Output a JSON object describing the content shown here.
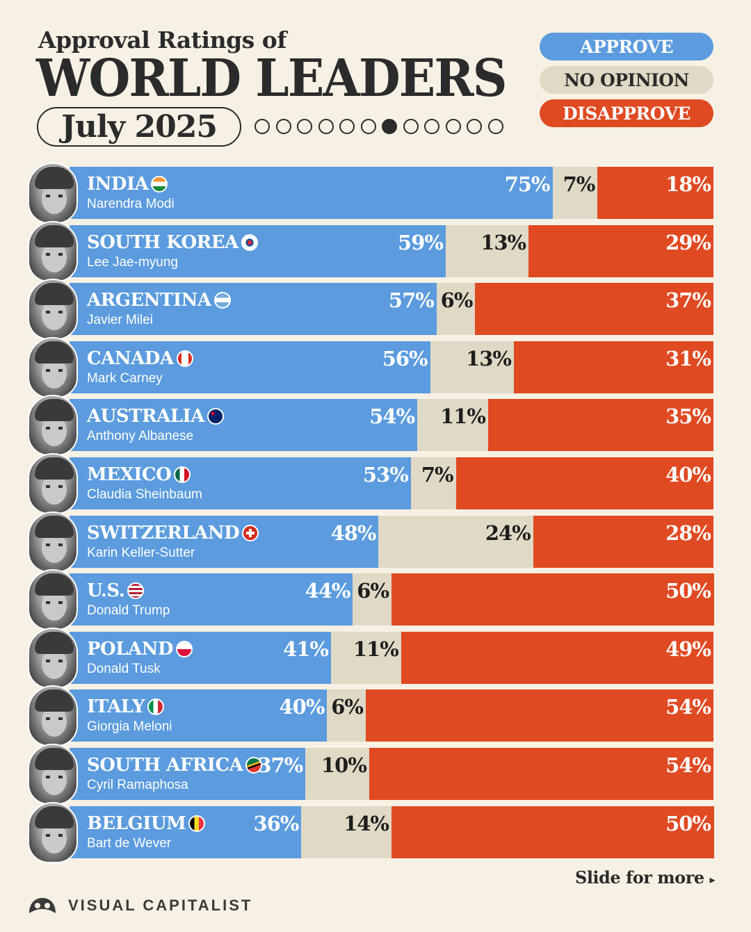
{
  "header": {
    "subtitle": "Approval Ratings of",
    "title": "WORLD LEADERS",
    "date": "July 2025",
    "pager": {
      "total": 12,
      "active": 6
    }
  },
  "legend": {
    "approve": "APPROVE",
    "no_opinion": "NO OPINION",
    "disapprove": "DISAPPROVE"
  },
  "colors": {
    "approve": "#5b9bde",
    "no_opinion": "#e0d9c6",
    "disapprove": "#e04a22",
    "background": "#f6f1e4"
  },
  "chart_data": {
    "type": "bar",
    "stacked": true,
    "orientation": "horizontal",
    "categories": [
      "INDIA",
      "SOUTH KOREA",
      "ARGENTINA",
      "CANADA",
      "AUSTRALIA",
      "MEXICO",
      "SWITZERLAND",
      "U.S.",
      "POLAND",
      "ITALY",
      "SOUTH AFRICA",
      "BELGIUM"
    ],
    "leaders": [
      "Narendra Modi",
      "Lee Jae-myung",
      "Javier Milei",
      "Mark Carney",
      "Anthony Albanese",
      "Claudia Sheinbaum",
      "Karin Keller-Sutter",
      "Donald Trump",
      "Donald Tusk",
      "Giorgia Meloni",
      "Cyril Ramaphosa",
      "Bart de Wever"
    ],
    "flags": [
      "india-flag",
      "south-korea-flag",
      "argentina-flag",
      "canada-flag",
      "australia-flag",
      "mexico-flag",
      "switzerland-flag",
      "us-flag",
      "poland-flag",
      "italy-flag",
      "south-africa-flag",
      "belgium-flag"
    ],
    "series": [
      {
        "name": "APPROVE",
        "values": [
          75,
          59,
          57,
          56,
          54,
          53,
          48,
          44,
          41,
          40,
          37,
          36
        ]
      },
      {
        "name": "NO OPINION",
        "values": [
          7,
          13,
          6,
          13,
          11,
          7,
          24,
          6,
          11,
          6,
          10,
          14
        ]
      },
      {
        "name": "DISAPPROVE",
        "values": [
          18,
          29,
          37,
          31,
          35,
          40,
          28,
          50,
          49,
          54,
          54,
          50
        ]
      }
    ],
    "value_labels": [
      [
        "75%",
        "7%",
        "18%"
      ],
      [
        "59%",
        "13%",
        "29%"
      ],
      [
        "57%",
        "6%",
        "37%"
      ],
      [
        "56%",
        "13%",
        "31%"
      ],
      [
        "54%",
        "11%",
        "35%"
      ],
      [
        "53%",
        "7%",
        "40%"
      ],
      [
        "48%",
        "24%",
        "28%"
      ],
      [
        "44%",
        "6%",
        "50%"
      ],
      [
        "41%",
        "11%",
        "49%"
      ],
      [
        "40%",
        "6%",
        "54%"
      ],
      [
        "37%",
        "10%",
        "54%"
      ],
      [
        "36%",
        "14%",
        "50%"
      ]
    ],
    "xlim": [
      0,
      100
    ],
    "legend_position": "top-right"
  },
  "footer": {
    "slide_label": "Slide for more",
    "brand": "VISUAL CAPITALIST"
  }
}
